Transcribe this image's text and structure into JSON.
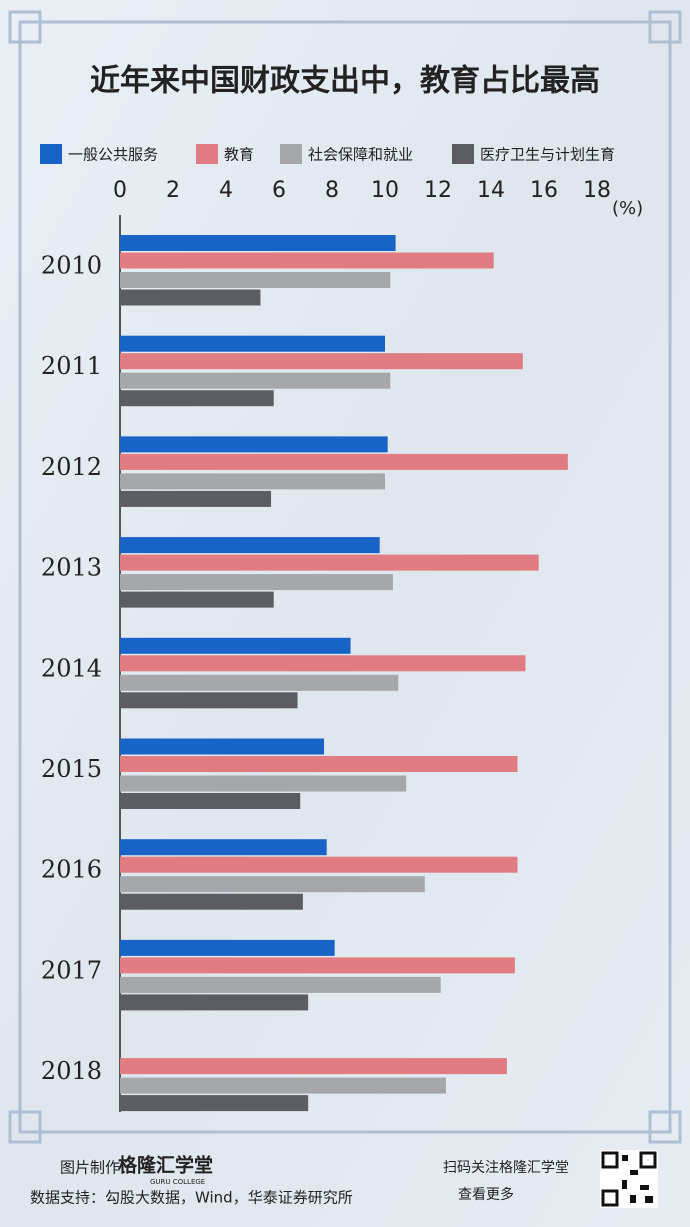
{
  "chart_data": {
    "type": "bar",
    "orientation": "horizontal",
    "title": "近年来中国财政支出中，教育占比最高",
    "unit": "(%)",
    "categories": [
      "2010",
      "2011",
      "2012",
      "2013",
      "2014",
      "2015",
      "2016",
      "2017",
      "2018"
    ],
    "series": [
      {
        "name": "一般公共服务",
        "color": "#1763c6",
        "values": [
          10.4,
          10.0,
          10.1,
          9.8,
          8.7,
          7.7,
          7.8,
          8.1,
          null
        ]
      },
      {
        "name": "教育",
        "color": "#e07c82",
        "values": [
          14.1,
          15.2,
          16.9,
          15.8,
          15.3,
          15.0,
          15.0,
          14.9,
          14.6
        ]
      },
      {
        "name": "社会保障和就业",
        "color": "#a5a7aa",
        "values": [
          10.2,
          10.2,
          10.0,
          10.3,
          10.5,
          10.8,
          11.5,
          12.1,
          12.3
        ]
      },
      {
        "name": "医疗卫生与计划生育",
        "color": "#5b5d62",
        "values": [
          5.3,
          5.8,
          5.7,
          5.8,
          6.7,
          6.8,
          6.9,
          7.1,
          7.1
        ]
      }
    ],
    "xlim": [
      0,
      18
    ],
    "xticks": [
      0,
      2,
      4,
      6,
      8,
      10,
      12,
      14,
      16,
      18
    ],
    "footer": {
      "maker_label": "图片制作：",
      "brand": "格隆汇学堂",
      "brand_sub": "GURU COLLEGE",
      "source": "数据支持：勾股大数据，Wind，华泰证券研究所",
      "qr_line1": "扫码关注格隆汇学堂",
      "qr_line2": "查看更多"
    }
  }
}
